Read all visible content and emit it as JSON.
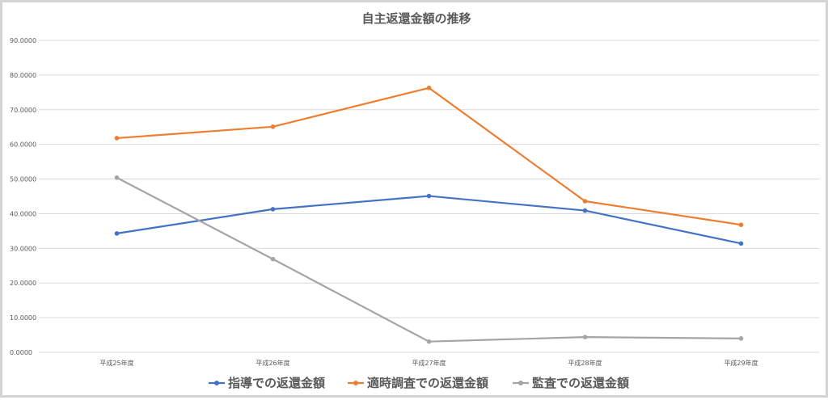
{
  "chart_data": {
    "type": "line",
    "title": "自主返還金額の推移",
    "xlabel": "",
    "ylabel": "",
    "categories": [
      "平成25年度",
      "平成26年度",
      "平成27年度",
      "平成28年度",
      "平成29年度"
    ],
    "ylim": [
      0,
      90000
    ],
    "yticks": [
      0,
      10000,
      20000,
      30000,
      40000,
      50000,
      60000,
      70000,
      80000,
      90000
    ],
    "ytick_labels": [
      "0.0000",
      "10.0000",
      "20.0000",
      "30.0000",
      "40.0000",
      "50.0000",
      "60.0000",
      "70.0000",
      "80.0000",
      "90.0000"
    ],
    "grid": true,
    "legend_position": "bottom",
    "series": [
      {
        "name": "指導での返還金額",
        "color": "#4472c4",
        "values": [
          34300,
          41300,
          45100,
          40900,
          31400
        ]
      },
      {
        "name": "適時調査での返還金額",
        "color": "#ed7d31",
        "values": [
          61800,
          65100,
          76300,
          43600,
          36800
        ]
      },
      {
        "name": "監査での返還金額",
        "color": "#a5a5a5",
        "values": [
          50400,
          26900,
          3100,
          4400,
          4000
        ]
      }
    ]
  }
}
